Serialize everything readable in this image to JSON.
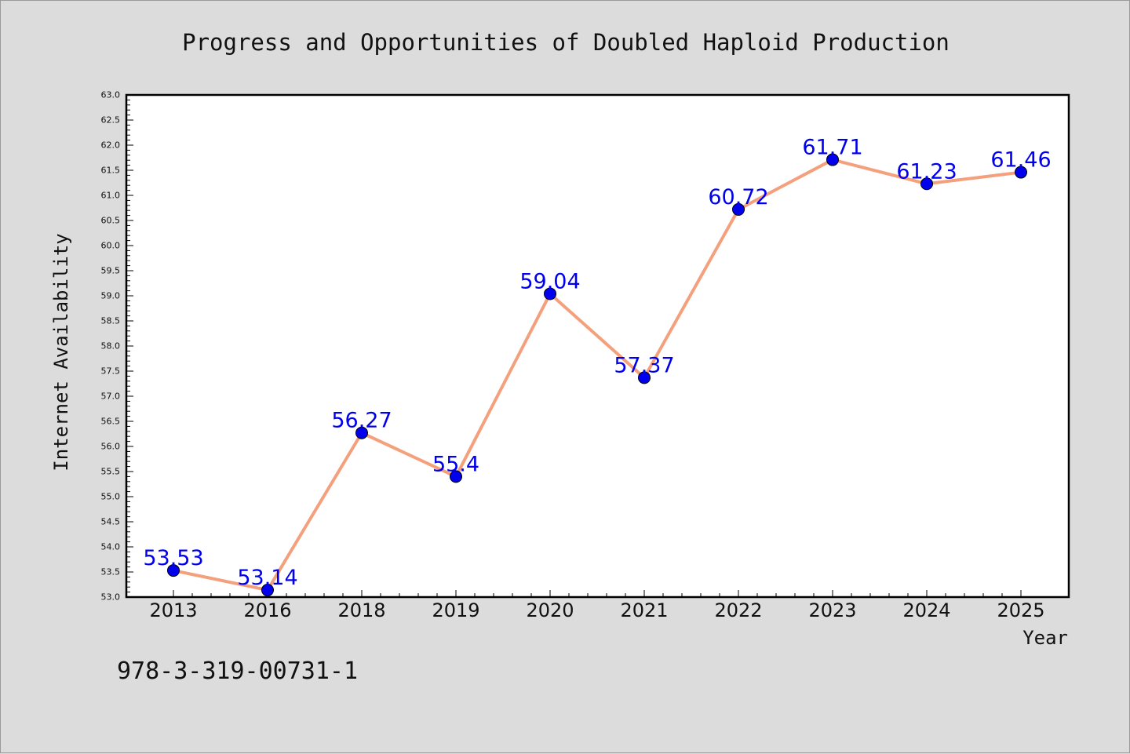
{
  "chart_data": {
    "type": "line",
    "title": "Progress and Opportunities of Doubled Haploid Production",
    "xlabel": "Year",
    "ylabel": "Internet Availability",
    "categories": [
      "2013",
      "2016",
      "2018",
      "2019",
      "2020",
      "2021",
      "2022",
      "2023",
      "2024",
      "2025"
    ],
    "values": [
      53.53,
      53.14,
      56.27,
      55.4,
      59.04,
      57.37,
      60.72,
      61.71,
      61.23,
      61.46
    ],
    "data_labels": [
      "53.53",
      "53.14",
      "56.27",
      "55.4",
      "59.04",
      "57.37",
      "60.72",
      "61.71",
      "61.23",
      "61.46"
    ],
    "ylim": [
      53.0,
      63.0
    ],
    "y_major_step": 0.5,
    "y_tick_labels": [
      "53.0",
      "53.5",
      "54.0",
      "54.5",
      "55.0",
      "55.5",
      "56.0",
      "56.5",
      "57.0",
      "57.5",
      "58.0",
      "58.5",
      "59.0",
      "59.5",
      "60.0",
      "60.5",
      "61.0",
      "61.5",
      "62.0",
      "62.5",
      "63.0"
    ],
    "grid": false,
    "line_color": "#f4a07c",
    "marker_color": "#0000ee",
    "label_color": "#0000ee"
  },
  "footer": {
    "isbn": "978-3-319-00731-1"
  }
}
